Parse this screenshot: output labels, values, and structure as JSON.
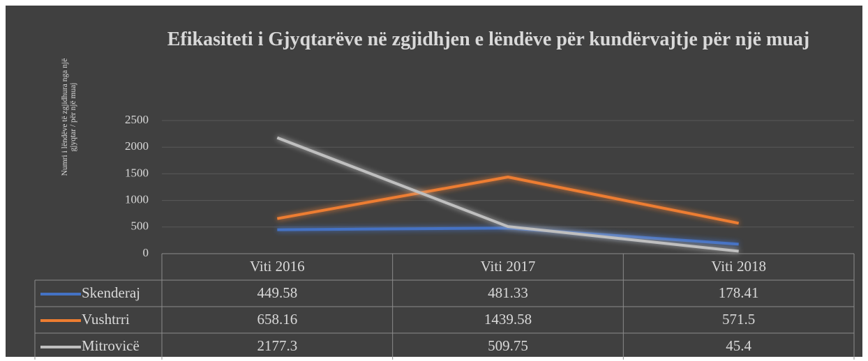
{
  "chart_data": {
    "type": "line",
    "title": "Efikasiteti i Gjyqtarëve në zgjidhjen e lëndëve për kundërvajtje për një muaj",
    "y_label": "Numri i lëndëve të zgjidhura nga një gjyqtar / për një muaj",
    "categories": [
      "Viti 2016",
      "Viti 2017",
      "Viti 2018"
    ],
    "series": [
      {
        "name": "Skenderaj",
        "color": "#4472c4",
        "values": [
          449.58,
          481.33,
          178.41
        ]
      },
      {
        "name": "Vushtrri",
        "color": "#ed7d31",
        "values": [
          658.16,
          1439.58,
          571.5
        ]
      },
      {
        "name": "Mitrovicë",
        "color": "#bfbfbf",
        "values": [
          2177.3,
          509.75,
          45.4
        ]
      }
    ],
    "ylim": [
      0,
      2500
    ],
    "yticks": [
      0,
      500,
      1000,
      1500,
      2000,
      2500
    ],
    "grid": true,
    "data_table": true
  }
}
